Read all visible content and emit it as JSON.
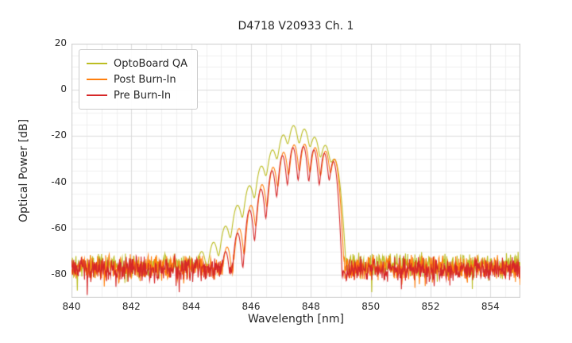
{
  "chart_data": {
    "type": "line",
    "title": "D4718 V20933 Ch. 1",
    "xlabel": "Wavelength [nm]",
    "ylabel": "Optical Power [dB]",
    "xlim": [
      840,
      855
    ],
    "ylim": [
      -90,
      20
    ],
    "xticks": [
      840,
      842,
      844,
      846,
      848,
      850,
      852,
      854
    ],
    "yticks": [
      20,
      0,
      -20,
      -40,
      -60,
      -80
    ],
    "grid": true,
    "grid_minor_step_x": 0.5,
    "grid_minor_step_y": 5,
    "legend_position": "upper left",
    "noise_floor_db": -77,
    "series": [
      {
        "name": "OptoBoard QA",
        "color": "#bcbd22",
        "noise_mean": -76,
        "noise_amp": 6,
        "sigma": 0.085,
        "peak_wavelength_nm": 847.4,
        "peak_power_db": -15.5,
        "modes": [
          [
            844.35,
            -70
          ],
          [
            844.75,
            -66
          ],
          [
            845.15,
            -59
          ],
          [
            845.55,
            -50
          ],
          [
            845.95,
            -41.5
          ],
          [
            846.35,
            -33
          ],
          [
            846.72,
            -26
          ],
          [
            847.08,
            -19.5
          ],
          [
            847.42,
            -15.5
          ],
          [
            847.78,
            -17
          ],
          [
            848.12,
            -20.5
          ],
          [
            848.48,
            -24
          ],
          [
            848.78,
            -30
          ]
        ]
      },
      {
        "name": "Post Burn-In",
        "color": "#ff7f0e",
        "noise_mean": -77,
        "noise_amp": 6,
        "sigma": 0.068,
        "peak_wavelength_nm": 847.8,
        "peak_power_db": -23.5,
        "modes": [
          [
            845.2,
            -68
          ],
          [
            845.6,
            -60
          ],
          [
            846.0,
            -50
          ],
          [
            846.37,
            -41
          ],
          [
            846.74,
            -33.5
          ],
          [
            847.09,
            -27
          ],
          [
            847.44,
            -23.8
          ],
          [
            847.79,
            -23.5
          ],
          [
            848.14,
            -25
          ],
          [
            848.49,
            -26.5
          ],
          [
            848.79,
            -30
          ]
        ]
      },
      {
        "name": "Pre Burn-In",
        "color": "#d62728",
        "noise_mean": -77.5,
        "noise_amp": 6,
        "sigma": 0.062,
        "peak_wavelength_nm": 847.75,
        "peak_power_db": -24.5,
        "modes": [
          [
            845.15,
            -70
          ],
          [
            845.55,
            -62
          ],
          [
            845.95,
            -52
          ],
          [
            846.33,
            -43
          ],
          [
            846.7,
            -35
          ],
          [
            847.05,
            -28.5
          ],
          [
            847.4,
            -25
          ],
          [
            847.75,
            -24.5
          ],
          [
            848.1,
            -26
          ],
          [
            848.45,
            -27.5
          ],
          [
            848.75,
            -31
          ]
        ]
      }
    ]
  }
}
